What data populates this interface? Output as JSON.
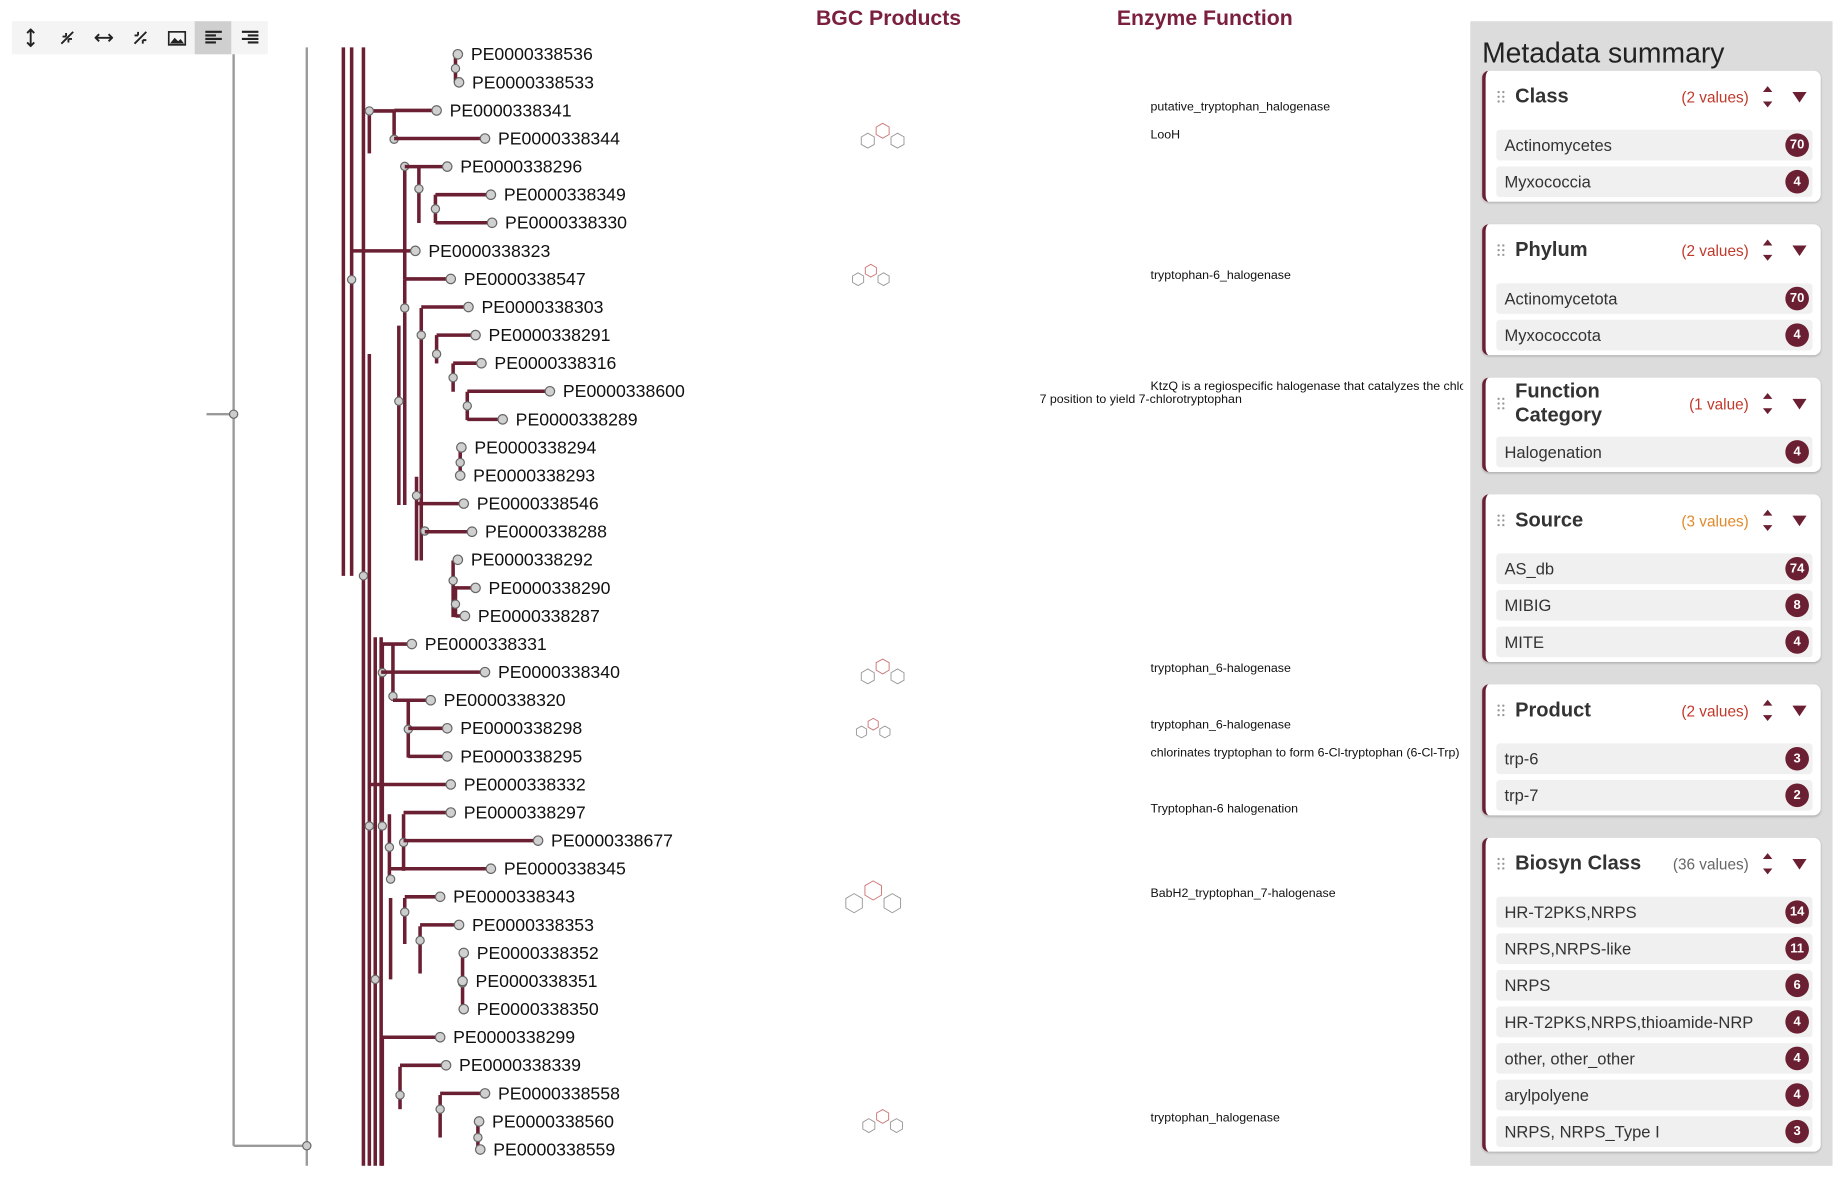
{
  "columns": {
    "products": "BGC Products",
    "enzyme": "Enzyme Function"
  },
  "leaves": [
    {
      "id": "PE0000338536"
    },
    {
      "id": "PE0000338533"
    },
    {
      "id": "PE0000338341",
      "enzyme": "putative_tryptophan_halogenase"
    },
    {
      "id": "PE0000338344",
      "enzyme": "LooH"
    },
    {
      "id": "PE0000338296"
    },
    {
      "id": "PE0000338349"
    },
    {
      "id": "PE0000338330"
    },
    {
      "id": "PE0000338323"
    },
    {
      "id": "PE0000338547",
      "enzyme": "tryptophan-6_halogenase"
    },
    {
      "id": "PE0000338303"
    },
    {
      "id": "PE0000338291"
    },
    {
      "id": "PE0000338316"
    },
    {
      "id": "PE0000338600",
      "enzyme": [
        "KtzQ is a regiospecific halogenase that catalyzes the chlo",
        "7 position to yield 7-chlorotryptophan"
      ]
    },
    {
      "id": "PE0000338289"
    },
    {
      "id": "PE0000338294"
    },
    {
      "id": "PE0000338293"
    },
    {
      "id": "PE0000338546"
    },
    {
      "id": "PE0000338288"
    },
    {
      "id": "PE0000338292"
    },
    {
      "id": "PE0000338290"
    },
    {
      "id": "PE0000338287"
    },
    {
      "id": "PE0000338331"
    },
    {
      "id": "PE0000338340",
      "enzyme": "tryptophan_6-halogenase"
    },
    {
      "id": "PE0000338320"
    },
    {
      "id": "PE0000338298",
      "enzyme": "tryptophan_6-halogenase"
    },
    {
      "id": "PE0000338295",
      "enzyme": "chlorinates tryptophan to form 6-Cl-tryptophan (6-Cl-Trp)"
    },
    {
      "id": "PE0000338332"
    },
    {
      "id": "PE0000338297",
      "enzyme": "Tryptophan-6 halogenation"
    },
    {
      "id": "PE0000338677"
    },
    {
      "id": "PE0000338345"
    },
    {
      "id": "PE0000338343",
      "enzyme": "BabH2_tryptophan_7-halogenase"
    },
    {
      "id": "PE0000338353"
    },
    {
      "id": "PE0000338352"
    },
    {
      "id": "PE0000338351"
    },
    {
      "id": "PE0000338350"
    },
    {
      "id": "PE0000338299"
    },
    {
      "id": "PE0000338339"
    },
    {
      "id": "PE0000338558"
    },
    {
      "id": "PE0000338560",
      "enzyme": "tryptophan_halogenase"
    },
    {
      "id": "PE0000338559"
    }
  ],
  "metadata": {
    "title": "Metadata summary",
    "sections": [
      {
        "name": "Class",
        "count_label": "(2 values)",
        "items": [
          {
            "label": "Actinomycetes",
            "count": 70
          },
          {
            "label": "Myxococcia",
            "count": 4
          }
        ]
      },
      {
        "name": "Phylum",
        "count_label": "(2 values)",
        "items": [
          {
            "label": "Actinomycetota",
            "count": 70
          },
          {
            "label": "Myxococcota",
            "count": 4
          }
        ]
      },
      {
        "name": "Function Category",
        "count_label": "(1 value)",
        "items": [
          {
            "label": "Halogenation",
            "count": 4
          }
        ]
      },
      {
        "name": "Source",
        "count_label": "(3 values)",
        "items": [
          {
            "label": "AS_db",
            "count": 74
          },
          {
            "label": "MIBIG",
            "count": 8
          },
          {
            "label": "MITE",
            "count": 4
          }
        ]
      },
      {
        "name": "Product",
        "count_label": "(2 values)",
        "items": [
          {
            "label": "trp-6",
            "count": 3
          },
          {
            "label": "trp-7",
            "count": 2
          }
        ]
      },
      {
        "name": "Biosyn Class",
        "count_label": "(36 values)",
        "items": [
          {
            "label": "HR-T2PKS,NRPS",
            "count": 14
          },
          {
            "label": "NRPS,NRPS-like",
            "count": 11
          },
          {
            "label": "NRPS",
            "count": 6
          },
          {
            "label": "HR-T2PKS,NRPS,thioamide-NRP",
            "count": 4
          },
          {
            "label": "other, other_other",
            "count": 4
          },
          {
            "label": "arylpolyene",
            "count": 4
          },
          {
            "label": "NRPS, NRPS_Type I",
            "count": 3
          }
        ]
      }
    ]
  }
}
